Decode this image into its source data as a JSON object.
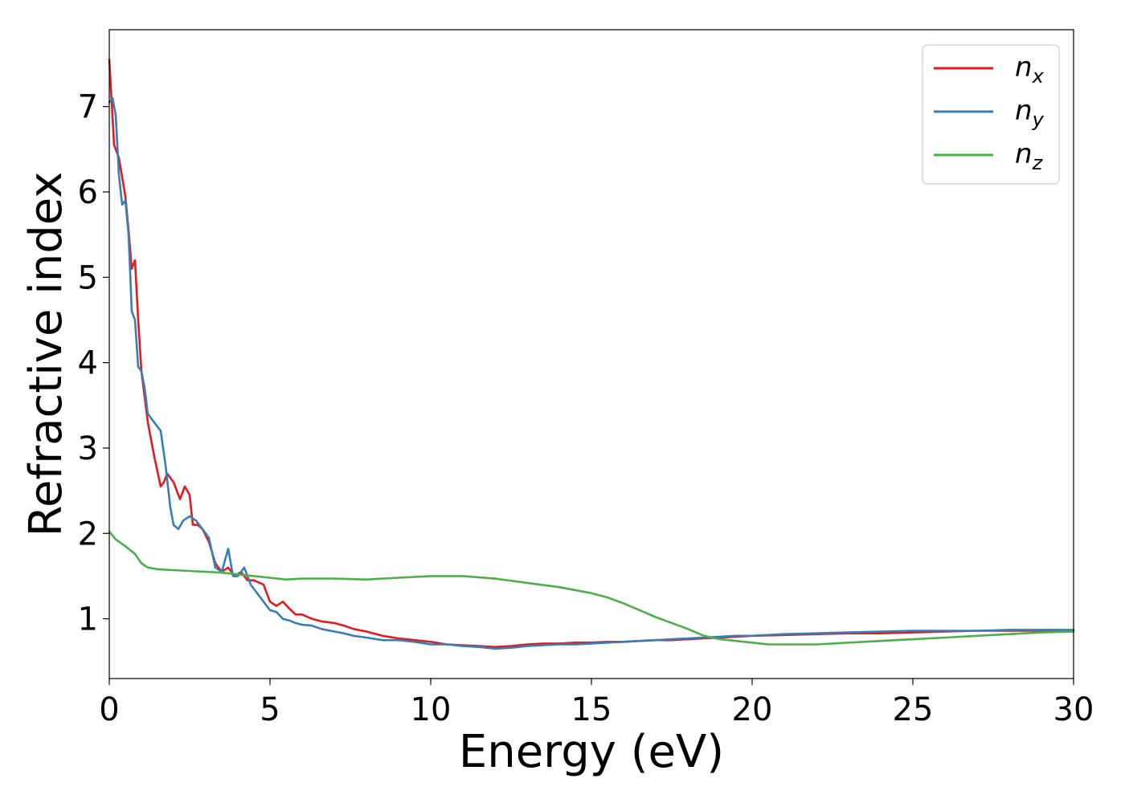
{
  "chart_data": {
    "type": "line",
    "xlabel": "Energy (eV)",
    "ylabel": "Refractive index",
    "xlim": [
      0,
      30
    ],
    "ylim": [
      0.3,
      7.9
    ],
    "xticks": [
      "0",
      "5",
      "10",
      "15",
      "20",
      "25",
      "30"
    ],
    "yticks": [
      "1",
      "2",
      "3",
      "4",
      "5",
      "6",
      "7"
    ],
    "grid": false,
    "legend_position": "top-right",
    "series": [
      {
        "name": "n_x",
        "label_main": "n",
        "label_sub": "x",
        "color": "#e41a1c",
        "x": [
          0,
          0.15,
          0.3,
          0.5,
          0.6,
          0.7,
          0.8,
          0.9,
          1.0,
          1.1,
          1.2,
          1.4,
          1.6,
          1.7,
          1.8,
          2.0,
          2.2,
          2.35,
          2.5,
          2.6,
          2.75,
          2.9,
          3.1,
          3.3,
          3.5,
          3.7,
          3.9,
          4.1,
          4.3,
          4.5,
          4.8,
          5.0,
          5.2,
          5.4,
          5.6,
          5.8,
          6.0,
          6.3,
          6.6,
          7.0,
          7.3,
          7.6,
          8.0,
          8.5,
          9.0,
          9.5,
          10.0,
          10.5,
          11.0,
          11.5,
          12.0,
          12.5,
          13.0,
          13.5,
          14.0,
          14.5,
          15.0,
          15.5,
          16.0,
          16.5,
          17.0,
          17.5,
          18.0,
          18.5,
          19.0,
          19.5,
          20.0,
          21.0,
          22.0,
          23.0,
          24.0,
          25.0,
          26.0,
          27.0,
          28.0,
          29.0,
          30.0
        ],
        "y": [
          7.55,
          6.55,
          6.4,
          5.95,
          5.55,
          5.1,
          5.2,
          4.5,
          3.9,
          3.6,
          3.3,
          2.9,
          2.55,
          2.6,
          2.7,
          2.6,
          2.4,
          2.55,
          2.45,
          2.1,
          2.1,
          2.05,
          1.9,
          1.65,
          1.55,
          1.6,
          1.5,
          1.55,
          1.45,
          1.45,
          1.4,
          1.2,
          1.15,
          1.2,
          1.12,
          1.05,
          1.05,
          1.0,
          0.97,
          0.95,
          0.92,
          0.88,
          0.85,
          0.8,
          0.77,
          0.75,
          0.73,
          0.7,
          0.69,
          0.68,
          0.67,
          0.68,
          0.7,
          0.71,
          0.71,
          0.72,
          0.72,
          0.73,
          0.73,
          0.74,
          0.75,
          0.75,
          0.76,
          0.77,
          0.78,
          0.79,
          0.8,
          0.81,
          0.82,
          0.83,
          0.83,
          0.84,
          0.85,
          0.86,
          0.86,
          0.86,
          0.86
        ]
      },
      {
        "name": "n_y",
        "label_main": "n",
        "label_sub": "y",
        "color": "#377eb8",
        "x": [
          0,
          0.1,
          0.2,
          0.3,
          0.4,
          0.5,
          0.6,
          0.7,
          0.8,
          0.9,
          1.0,
          1.1,
          1.2,
          1.4,
          1.6,
          1.75,
          1.9,
          2.0,
          2.15,
          2.3,
          2.5,
          2.7,
          2.9,
          3.1,
          3.3,
          3.5,
          3.7,
          3.85,
          4.0,
          4.2,
          4.4,
          4.6,
          4.8,
          5.0,
          5.2,
          5.4,
          5.6,
          5.8,
          6.0,
          6.3,
          6.6,
          7.0,
          7.3,
          7.6,
          8.0,
          8.5,
          9.0,
          9.5,
          10.0,
          10.5,
          11.0,
          11.5,
          12.0,
          12.5,
          13.0,
          13.5,
          14.0,
          14.5,
          15.0,
          15.5,
          16.0,
          16.5,
          17.0,
          17.5,
          18.0,
          18.5,
          19.0,
          19.5,
          20.0,
          21.0,
          22.0,
          23.0,
          24.0,
          25.0,
          26.0,
          27.0,
          28.0,
          29.0,
          30.0
        ],
        "y": [
          7.05,
          7.1,
          6.9,
          6.2,
          5.85,
          5.9,
          5.5,
          4.6,
          4.5,
          3.95,
          3.9,
          3.7,
          3.4,
          3.3,
          3.2,
          2.8,
          2.3,
          2.1,
          2.05,
          2.15,
          2.2,
          2.15,
          2.05,
          1.95,
          1.6,
          1.55,
          1.82,
          1.5,
          1.5,
          1.6,
          1.4,
          1.3,
          1.2,
          1.1,
          1.08,
          1.0,
          0.98,
          0.95,
          0.93,
          0.92,
          0.88,
          0.85,
          0.83,
          0.8,
          0.78,
          0.75,
          0.75,
          0.73,
          0.7,
          0.7,
          0.68,
          0.67,
          0.65,
          0.66,
          0.68,
          0.69,
          0.7,
          0.7,
          0.71,
          0.72,
          0.73,
          0.74,
          0.75,
          0.76,
          0.77,
          0.78,
          0.79,
          0.8,
          0.8,
          0.82,
          0.83,
          0.84,
          0.85,
          0.86,
          0.86,
          0.86,
          0.87,
          0.87,
          0.87
        ]
      },
      {
        "name": "n_z",
        "label_main": "n",
        "label_sub": "z",
        "color": "#4daf4a",
        "x": [
          0,
          0.2,
          0.5,
          0.8,
          1.0,
          1.2,
          1.5,
          2.0,
          2.5,
          3.0,
          3.5,
          4.0,
          4.5,
          5.0,
          5.5,
          6.0,
          7.0,
          8.0,
          9.0,
          10.0,
          11.0,
          12.0,
          13.0,
          14.0,
          15.0,
          15.5,
          16.0,
          16.5,
          17.0,
          17.5,
          18.0,
          18.5,
          19.0,
          19.5,
          20.0,
          20.5,
          21.0,
          22.0,
          23.0,
          24.0,
          25.0,
          26.0,
          27.0,
          28.0,
          29.0,
          30.0
        ],
        "y": [
          2.02,
          1.93,
          1.85,
          1.76,
          1.65,
          1.6,
          1.58,
          1.57,
          1.56,
          1.55,
          1.54,
          1.52,
          1.5,
          1.48,
          1.46,
          1.47,
          1.47,
          1.46,
          1.48,
          1.5,
          1.5,
          1.47,
          1.42,
          1.37,
          1.3,
          1.25,
          1.18,
          1.1,
          1.02,
          0.95,
          0.88,
          0.8,
          0.76,
          0.74,
          0.72,
          0.7,
          0.7,
          0.7,
          0.72,
          0.74,
          0.76,
          0.78,
          0.8,
          0.82,
          0.84,
          0.85
        ]
      }
    ]
  }
}
